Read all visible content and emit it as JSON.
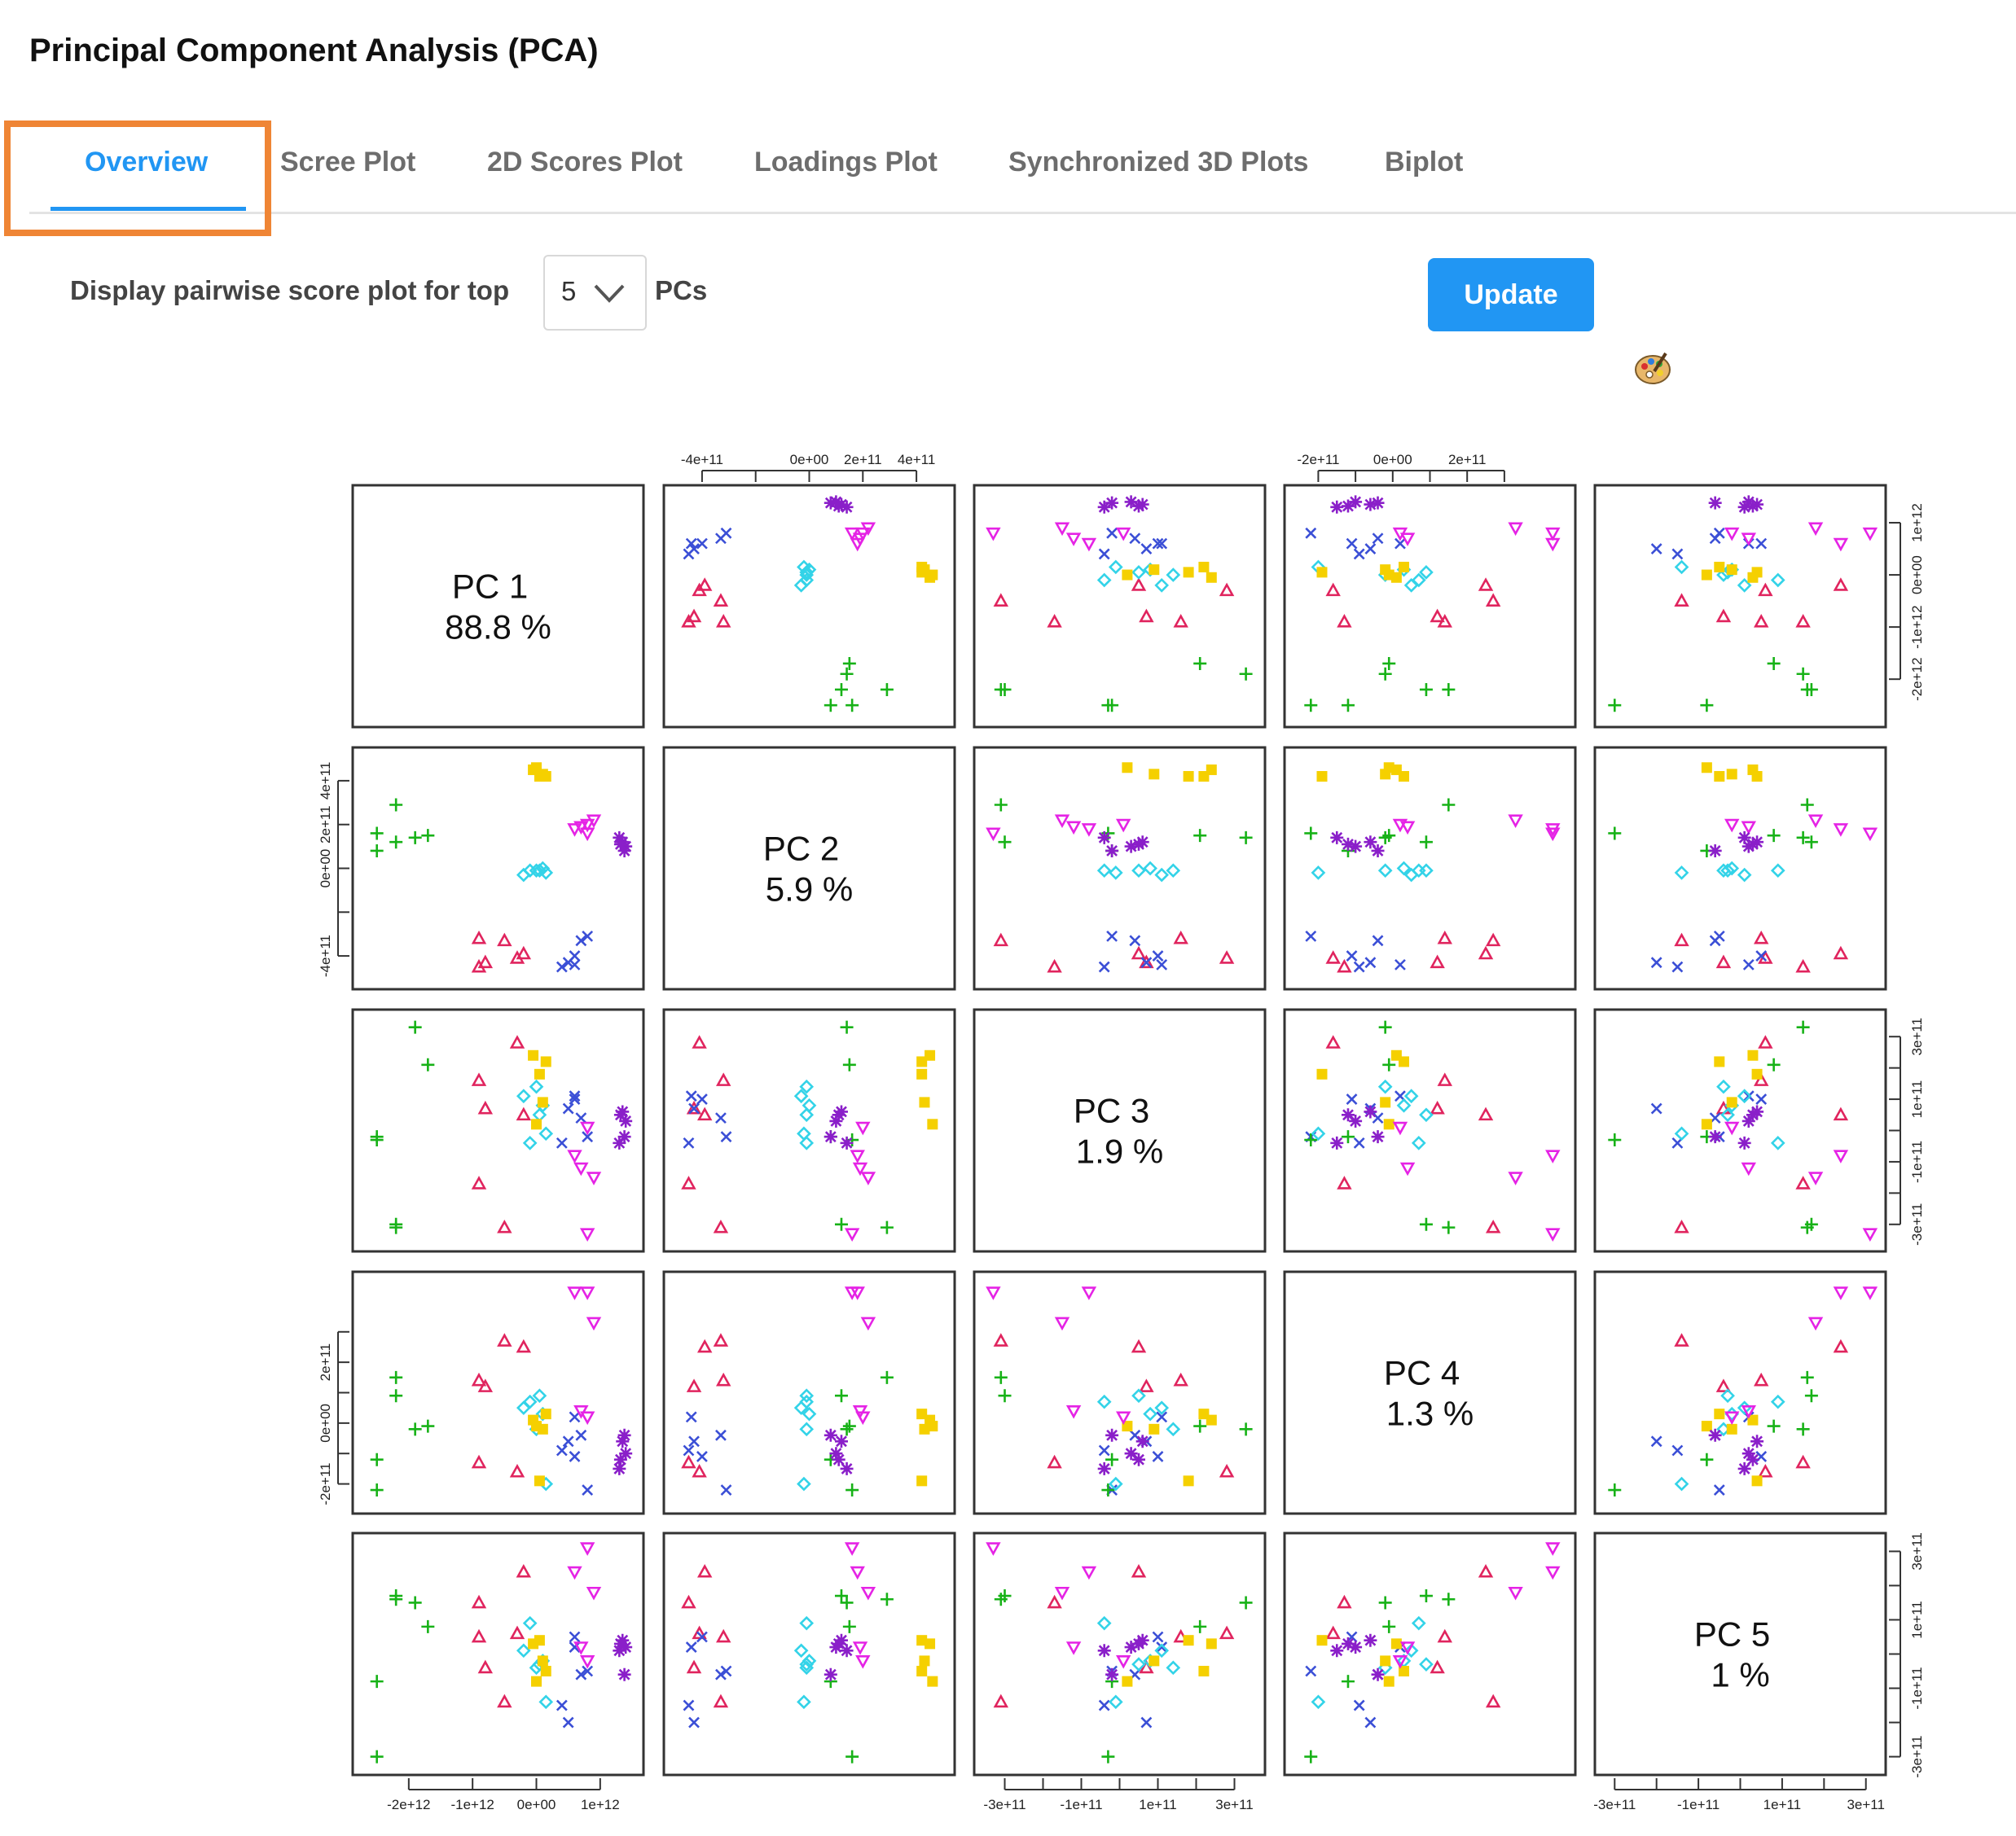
{
  "header": {
    "title": "Principal Component Analysis (PCA)"
  },
  "tabs": [
    {
      "label": "Overview",
      "active": true
    },
    {
      "label": "Scree Plot",
      "active": false
    },
    {
      "label": "2D Scores Plot",
      "active": false
    },
    {
      "label": "Loadings Plot",
      "active": false
    },
    {
      "label": "Synchronized 3D Plots",
      "active": false
    },
    {
      "label": "Biplot",
      "active": false
    }
  ],
  "controls": {
    "label_before": "Display pairwise score plot for top",
    "select_value": "5",
    "label_after": "PCs",
    "update_label": "Update",
    "palette_icon": "palette-icon"
  },
  "colors": {
    "accent": "#2196f3",
    "highlight": "#ef8535",
    "groups": [
      "#e0245e",
      "#3b4fd6",
      "#17b217",
      "#33d3e8",
      "#f5d000",
      "#e523e5",
      "#8a1fc9"
    ]
  },
  "chart_data": {
    "type": "scatter",
    "subtype": "pairs-matrix",
    "diagonal": [
      {
        "pc": "PC 1",
        "variance": "88.8 %"
      },
      {
        "pc": "PC 2",
        "variance": "5.9 %"
      },
      {
        "pc": "PC 3",
        "variance": "1.9 %"
      },
      {
        "pc": "PC 4",
        "variance": "1.3 %"
      },
      {
        "pc": "PC 5",
        "variance": "1 %"
      }
    ],
    "axes": {
      "pc1": {
        "ticks": [
          "-2e+12",
          "-1e+12",
          "0e+00",
          "1e+12"
        ],
        "range": [
          -2700000000000.0,
          1500000000000.0
        ],
        "tick_values": [
          -2000000000000.0,
          -1000000000000.0,
          0,
          1000000000000.0
        ]
      },
      "pc2": {
        "ticks": [
          "-4e+11",
          "0e+00",
          "2e+11",
          "4e+11"
        ],
        "range": [
          -500000000000.0,
          500000000000.0
        ],
        "tick_values": [
          -400000000000.0,
          0,
          200000000000.0,
          400000000000.0
        ],
        "minor_values": [
          -200000000000.0
        ]
      },
      "pc3": {
        "ticks": [
          "-3e+11",
          "-1e+11",
          "1e+11",
          "3e+11"
        ],
        "range": [
          -350000000000.0,
          350000000000.0
        ],
        "tick_values": [
          -300000000000.0,
          -100000000000.0,
          100000000000.0,
          300000000000.0
        ],
        "minor_values": [
          -200000000000.0,
          0,
          200000000000.0
        ]
      },
      "pc4": {
        "ticks": [
          "-2e+11",
          "0e+00",
          "2e+11"
        ],
        "range": [
          -260000000000.0,
          460000000000.0
        ],
        "tick_values": [
          -200000000000.0,
          0,
          200000000000.0
        ],
        "minor_values": [
          -100000000000.0,
          100000000000.0,
          300000000000.0
        ]
      },
      "pc5": {
        "ticks": [
          "-3e+11",
          "-1e+11",
          "1e+11",
          "3e+11"
        ],
        "range": [
          -320000000000.0,
          320000000000.0
        ],
        "tick_values": [
          -300000000000.0,
          -100000000000.0,
          100000000000.0,
          300000000000.0
        ],
        "minor_values": [
          -200000000000.0,
          0,
          200000000000.0
        ]
      }
    },
    "groups": [
      {
        "symbol": "triangle",
        "color": "#e0245e",
        "points": [
          [
            -200000000000.0,
            -390000000000.0,
            50000000000.0,
            250000000000.0,
            240000000000.0
          ],
          [
            -900000000000.0,
            -320000000000.0,
            160000000000.0,
            140000000000.0,
            50000000000.0
          ],
          [
            -500000000000.0,
            -330000000000.0,
            -310000000000.0,
            270000000000.0,
            -140000000000.0
          ],
          [
            -900000000000.0,
            -450000000000.0,
            -170000000000.0,
            -130000000000.0,
            150000000000.0
          ],
          [
            -800000000000.0,
            -430000000000.0,
            70000000000.0,
            120000000000.0,
            -40000000000.0
          ],
          [
            -300000000000.0,
            -410000000000.0,
            280000000000.0,
            -160000000000.0,
            60000000000.0
          ]
        ]
      },
      {
        "symbol": "x",
        "color": "#3b4fd6",
        "points": [
          [
            500000000000.0,
            -430000000000.0,
            70000000000.0,
            -60000000000.0,
            -200000000000.0
          ],
          [
            600000000000.0,
            -400000000000.0,
            100000000000.0,
            -110000000000.0,
            50000000000.0
          ],
          [
            700000000000.0,
            -330000000000.0,
            40000000000.0,
            -40000000000.0,
            -60000000000.0
          ],
          [
            800000000000.0,
            -310000000000.0,
            -20000000000.0,
            -220000000000.0,
            -50000000000.0
          ],
          [
            400000000000.0,
            -450000000000.0,
            -40000000000.0,
            -90000000000.0,
            -150000000000.0
          ],
          [
            600000000000.0,
            -440000000000.0,
            110000000000.0,
            20000000000.0,
            20000000000.0
          ]
        ]
      },
      {
        "symbol": "plus",
        "color": "#17b217",
        "points": [
          [
            -2500000000000.0,
            80000000000.0,
            -20000000000.0,
            -120000000000.0,
            -80000000000.0
          ],
          [
            -2200000000000.0,
            290000000000.0,
            -310000000000.0,
            150000000000.0,
            160000000000.0
          ],
          [
            -1700000000000.0,
            150000000000.0,
            210000000000.0,
            -10000000000.0,
            80000000000.0
          ],
          [
            -1900000000000.0,
            140000000000.0,
            330000000000.0,
            -20000000000.0,
            150000000000.0
          ],
          [
            -2500000000000.0,
            160000000000.0,
            -30000000000.0,
            -220000000000.0,
            -300000000000.0
          ],
          [
            -2200000000000.0,
            120000000000.0,
            -300000000000.0,
            90000000000.0,
            170000000000.0
          ]
        ]
      },
      {
        "symbol": "diamond",
        "color": "#33d3e8",
        "points": [
          [
            -100000000000.0,
            -10000000000.0,
            -40000000000.0,
            70000000000.0,
            90000000000.0
          ],
          [
            100000000000.0,
            0.0,
            80000000000.0,
            30000000000.0,
            -20000000000.0
          ],
          [
            0.0,
            -10000000000.0,
            140000000000.0,
            -20000000000.0,
            -40000000000.0
          ],
          [
            50000000000.0,
            -10000000000.0,
            50000000000.0,
            90000000000.0,
            -30000000000.0
          ],
          [
            150000000000.0,
            -20000000000.0,
            -10000000000.0,
            -200000000000.0,
            -140000000000.0
          ],
          [
            -200000000000.0,
            -30000000000.0,
            110000000000.0,
            50000000000.0,
            10000000000.0
          ]
        ]
      },
      {
        "symbol": "square",
        "color": "#f5d000",
        "points": [
          [
            -50000000000.0,
            450000000000.0,
            240000000000.0,
            10000000000.0,
            30000000000.0
          ],
          [
            100000000000.0,
            430000000000.0,
            90000000000.0,
            -20000000000.0,
            -20000000000.0
          ],
          [
            50000000000.0,
            420000000000.0,
            180000000000.0,
            -190000000000.0,
            40000000000.0
          ],
          [
            0.0,
            460000000000.0,
            20000000000.0,
            -10000000000.0,
            -80000000000.0
          ],
          [
            150000000000.0,
            420000000000.0,
            220000000000.0,
            30000000000.0,
            -50000000000.0
          ]
        ]
      },
      {
        "symbol": "triangle-down",
        "color": "#e523e5",
        "points": [
          [
            600000000000.0,
            180000000000.0,
            -80000000000.0,
            430000000000.0,
            240000000000.0
          ],
          [
            900000000000.0,
            220000000000.0,
            -150000000000.0,
            330000000000.0,
            180000000000.0
          ],
          [
            700000000000.0,
            190000000000.0,
            -120000000000.0,
            40000000000.0,
            20000000000.0
          ],
          [
            800000000000.0,
            200000000000.0,
            10000000000.0,
            20000000000.0,
            -20000000000.0
          ],
          [
            800000000000.0,
            160000000000.0,
            -330000000000.0,
            430000000000.0,
            310000000000.0
          ]
        ]
      },
      {
        "symbol": "asterisk",
        "color": "#8a1fc9",
        "points": [
          [
            1350000000000.0,
            120000000000.0,
            60000000000.0,
            -60000000000.0,
            40000000000.0
          ],
          [
            1400000000000.0,
            100000000000.0,
            30000000000.0,
            -100000000000.0,
            20000000000.0
          ],
          [
            1300000000000.0,
            140000000000.0,
            -40000000000.0,
            -150000000000.0,
            10000000000.0
          ],
          [
            1380000000000.0,
            80000000000.0,
            -20000000000.0,
            -40000000000.0,
            -60000000000.0
          ],
          [
            1320000000000.0,
            110000000000.0,
            50000000000.0,
            -120000000000.0,
            30000000000.0
          ]
        ]
      }
    ]
  }
}
